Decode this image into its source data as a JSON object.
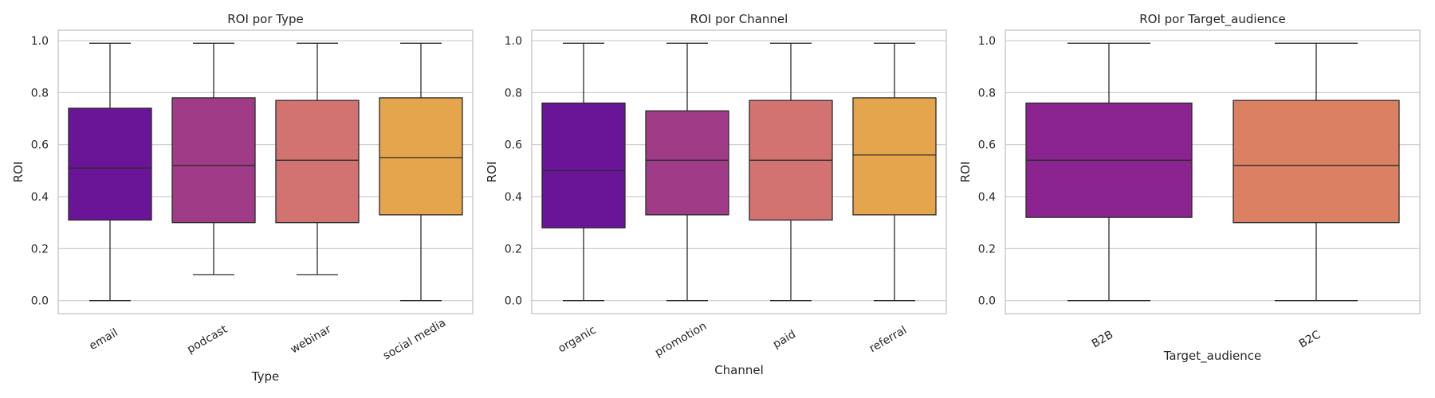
{
  "chart_data": [
    {
      "type": "box",
      "title": "ROI por Type",
      "xlabel": "Type",
      "ylabel": "ROI",
      "ylim": [
        -0.05,
        1.04
      ],
      "yticks": [
        "0.0",
        "0.2",
        "0.4",
        "0.6",
        "0.8",
        "1.0"
      ],
      "grid": true,
      "categories": [
        "email",
        "podcast",
        "webinar",
        "social media"
      ],
      "colors": [
        "#6a1597",
        "#a03b87",
        "#d37371",
        "#e5a54d"
      ],
      "stats": [
        {
          "min": 0.0,
          "q1": 0.31,
          "median": 0.51,
          "q3": 0.74,
          "max": 0.99
        },
        {
          "min": 0.1,
          "q1": 0.3,
          "median": 0.52,
          "q3": 0.78,
          "max": 0.99
        },
        {
          "min": 0.1,
          "q1": 0.3,
          "median": 0.54,
          "q3": 0.77,
          "max": 0.99
        },
        {
          "min": 0.0,
          "q1": 0.33,
          "median": 0.55,
          "q3": 0.78,
          "max": 0.99
        }
      ]
    },
    {
      "type": "box",
      "title": "ROI por Channel",
      "xlabel": "Channel",
      "ylabel": "ROI",
      "ylim": [
        -0.05,
        1.04
      ],
      "yticks": [
        "0.0",
        "0.2",
        "0.4",
        "0.6",
        "0.8",
        "1.0"
      ],
      "grid": true,
      "categories": [
        "organic",
        "promotion",
        "paid",
        "referral"
      ],
      "colors": [
        "#6a1597",
        "#a03b87",
        "#d37371",
        "#e5a54d"
      ],
      "stats": [
        {
          "min": 0.0,
          "q1": 0.28,
          "median": 0.5,
          "q3": 0.76,
          "max": 0.99
        },
        {
          "min": 0.0,
          "q1": 0.33,
          "median": 0.54,
          "q3": 0.73,
          "max": 0.99
        },
        {
          "min": 0.0,
          "q1": 0.31,
          "median": 0.54,
          "q3": 0.77,
          "max": 0.99
        },
        {
          "min": 0.0,
          "q1": 0.33,
          "median": 0.56,
          "q3": 0.78,
          "max": 0.99
        }
      ]
    },
    {
      "type": "box",
      "title": "ROI por Target_audience",
      "xlabel": "Target_audience",
      "ylabel": "ROI",
      "ylim": [
        -0.05,
        1.04
      ],
      "yticks": [
        "0.0",
        "0.2",
        "0.4",
        "0.6",
        "0.8",
        "1.0"
      ],
      "grid": true,
      "categories": [
        "B2B",
        "B2C"
      ],
      "colors": [
        "#8b2490",
        "#db8063"
      ],
      "stats": [
        {
          "min": 0.0,
          "q1": 0.32,
          "median": 0.54,
          "q3": 0.76,
          "max": 0.99
        },
        {
          "min": 0.0,
          "q1": 0.3,
          "median": 0.52,
          "q3": 0.77,
          "max": 0.99
        }
      ]
    }
  ]
}
